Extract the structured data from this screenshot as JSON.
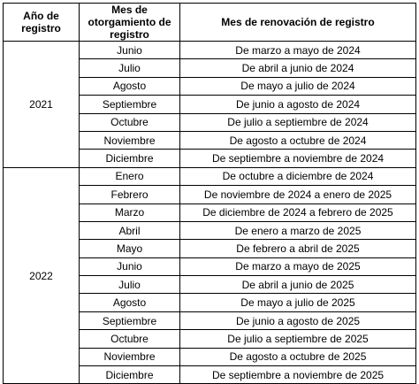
{
  "table": {
    "headers": {
      "year": "Año de registro",
      "grant_month": "Mes de otorgamiento de registro",
      "renewal_month": "Mes de renovación de registro"
    },
    "groups": [
      {
        "year": "2021",
        "rows": [
          {
            "month": "Junio",
            "renewal": "De marzo a mayo de 2024"
          },
          {
            "month": "Julio",
            "renewal": "De abril a junio de 2024"
          },
          {
            "month": "Agosto",
            "renewal": "De mayo a julio de 2024"
          },
          {
            "month": "Septiembre",
            "renewal": "De junio a agosto de 2024"
          },
          {
            "month": "Octubre",
            "renewal": "De julio a septiembre de 2024"
          },
          {
            "month": "Noviembre",
            "renewal": "De agosto a octubre de 2024"
          },
          {
            "month": "Diciembre",
            "renewal": "De septiembre a noviembre de 2024"
          }
        ]
      },
      {
        "year": "2022",
        "rows": [
          {
            "month": "Enero",
            "renewal": "De octubre a diciembre de 2024"
          },
          {
            "month": "Febrero",
            "renewal": "De noviembre de 2024 a enero de 2025"
          },
          {
            "month": "Marzo",
            "renewal": "De diciembre de 2024 a febrero de 2025"
          },
          {
            "month": "Abril",
            "renewal": "De enero a marzo de 2025"
          },
          {
            "month": "Mayo",
            "renewal": "De febrero a abril de 2025"
          },
          {
            "month": "Junio",
            "renewal": "De marzo a mayo de 2025"
          },
          {
            "month": "Julio",
            "renewal": "De abril a junio de 2025"
          },
          {
            "month": "Agosto",
            "renewal": "De mayo a julio de 2025"
          },
          {
            "month": "Septiembre",
            "renewal": "De junio a agosto de 2025"
          },
          {
            "month": "Octubre",
            "renewal": "De julio a septiembre de 2025"
          },
          {
            "month": "Noviembre",
            "renewal": "De agosto a octubre de 2025"
          },
          {
            "month": "Diciembre",
            "renewal": "De septiembre a noviembre de 2025"
          }
        ]
      }
    ]
  }
}
